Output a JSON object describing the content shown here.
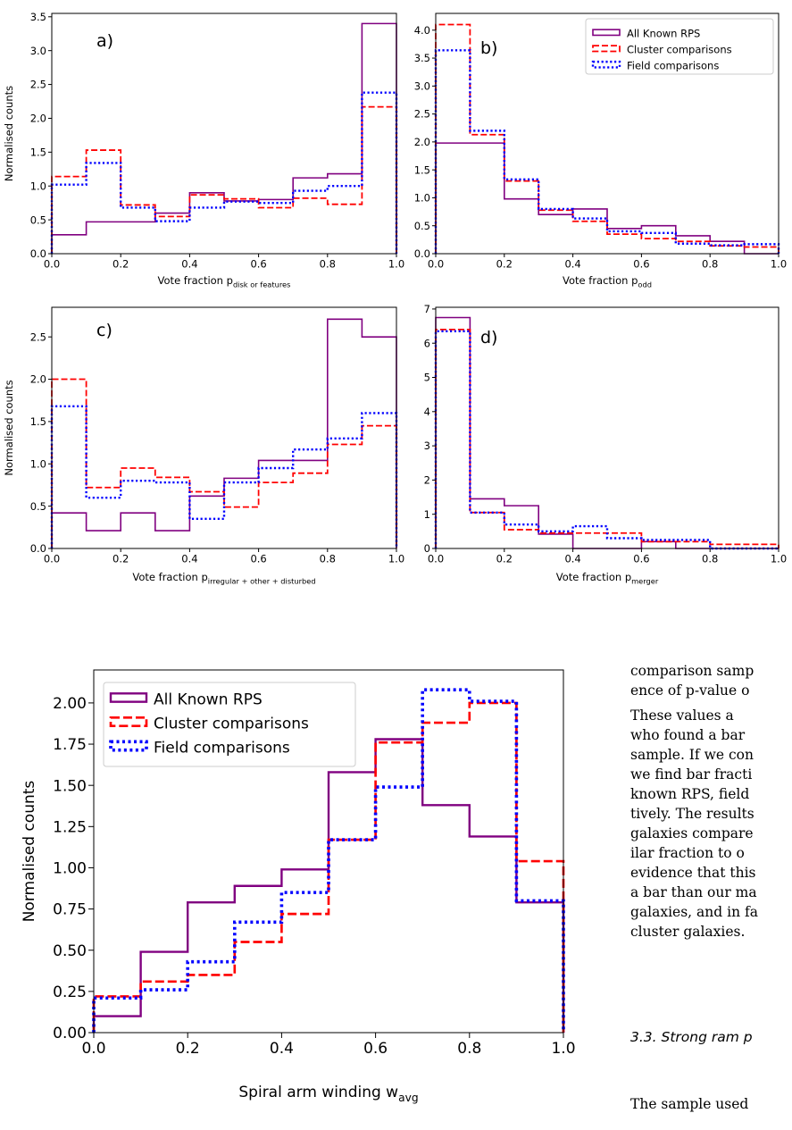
{
  "colors": {
    "rps": "#800080",
    "cluster": "#ff0000",
    "field": "#0000ff",
    "axis": "#000000"
  },
  "legend": {
    "rps": "All Known RPS",
    "cluster": "Cluster comparisons",
    "field": "Field comparisons"
  },
  "chart_data": [
    {
      "panel": "a)",
      "type": "histogram",
      "xlabel": "Vote fraction p",
      "xlabel_sub": "disk or features",
      "ylabel": "Normalised counts",
      "bin_edges": [
        0,
        0.1,
        0.2,
        0.3,
        0.4,
        0.5,
        0.6,
        0.7,
        0.8,
        0.9,
        1.0
      ],
      "xlim": [
        0,
        1
      ],
      "ylim": [
        0,
        3.55
      ],
      "xticks": [
        "0.0",
        "0.2",
        "0.4",
        "0.6",
        "0.8",
        "1.0"
      ],
      "yticks": [
        "0.0",
        "0.5",
        "1.0",
        "1.5",
        "2.0",
        "2.5",
        "3.0",
        "3.5"
      ],
      "series": [
        {
          "key": "rps",
          "name": "All Known RPS",
          "values": [
            0.28,
            0.47,
            0.47,
            0.6,
            0.9,
            0.78,
            0.8,
            1.12,
            1.18,
            3.4
          ]
        },
        {
          "key": "cluster",
          "name": "Cluster comparisons",
          "values": [
            1.14,
            1.53,
            0.72,
            0.55,
            0.87,
            0.81,
            0.68,
            0.82,
            0.73,
            2.17
          ]
        },
        {
          "key": "field",
          "name": "Field comparisons",
          "values": [
            1.02,
            1.34,
            0.68,
            0.48,
            0.68,
            0.77,
            0.75,
            0.93,
            1.0,
            2.38
          ]
        }
      ]
    },
    {
      "panel": "b)",
      "type": "histogram",
      "xlabel": "Vote fraction p",
      "xlabel_sub": "odd",
      "ylabel": "",
      "bin_edges": [
        0,
        0.1,
        0.2,
        0.3,
        0.4,
        0.5,
        0.6,
        0.7,
        0.8,
        0.9,
        1.0
      ],
      "xlim": [
        0,
        1
      ],
      "ylim": [
        0,
        4.3
      ],
      "xticks": [
        "0.0",
        "0.2",
        "0.4",
        "0.6",
        "0.8",
        "1.0"
      ],
      "yticks": [
        "0.0",
        "0.5",
        "1.0",
        "1.5",
        "2.0",
        "2.5",
        "3.0",
        "3.5",
        "4.0"
      ],
      "legend": true,
      "series": [
        {
          "key": "rps",
          "name": "All Known RPS",
          "values": [
            1.98,
            1.98,
            0.98,
            0.7,
            0.8,
            0.45,
            0.5,
            0.32,
            0.22,
            0.0
          ]
        },
        {
          "key": "cluster",
          "name": "Cluster comparisons",
          "values": [
            4.1,
            2.13,
            1.3,
            0.78,
            0.58,
            0.35,
            0.27,
            0.22,
            0.14,
            0.12
          ]
        },
        {
          "key": "field",
          "name": "Field comparisons",
          "values": [
            3.64,
            2.2,
            1.33,
            0.8,
            0.63,
            0.4,
            0.37,
            0.18,
            0.15,
            0.17
          ]
        }
      ]
    },
    {
      "panel": "c)",
      "type": "histogram",
      "xlabel": "Vote fraction p",
      "xlabel_sub": "irregular + other + disturbed",
      "ylabel": "Normalised counts",
      "bin_edges": [
        0,
        0.1,
        0.2,
        0.3,
        0.4,
        0.5,
        0.6,
        0.7,
        0.8,
        0.9,
        1.0
      ],
      "xlim": [
        0,
        1
      ],
      "ylim": [
        0,
        2.85
      ],
      "xticks": [
        "0.0",
        "0.2",
        "0.4",
        "0.6",
        "0.8",
        "1.0"
      ],
      "yticks": [
        "0.0",
        "0.5",
        "1.0",
        "1.5",
        "2.0",
        "2.5"
      ],
      "series": [
        {
          "key": "rps",
          "name": "All Known RPS",
          "values": [
            0.42,
            0.21,
            0.42,
            0.21,
            0.62,
            0.83,
            1.04,
            1.04,
            2.71,
            2.5
          ]
        },
        {
          "key": "cluster",
          "name": "Cluster comparisons",
          "values": [
            2.0,
            0.72,
            0.95,
            0.84,
            0.67,
            0.49,
            0.78,
            0.89,
            1.23,
            1.45
          ]
        },
        {
          "key": "field",
          "name": "Field comparisons",
          "values": [
            1.68,
            0.6,
            0.8,
            0.78,
            0.35,
            0.78,
            0.95,
            1.17,
            1.3,
            1.6
          ]
        }
      ]
    },
    {
      "panel": "d)",
      "type": "histogram",
      "xlabel": "Vote fraction p",
      "xlabel_sub": "merger",
      "ylabel": "",
      "bin_edges": [
        0,
        0.1,
        0.2,
        0.3,
        0.4,
        0.5,
        0.6,
        0.7,
        0.8,
        0.9,
        1.0
      ],
      "xlim": [
        0,
        1
      ],
      "ylim": [
        0,
        7.05
      ],
      "xticks": [
        "0.0",
        "0.2",
        "0.4",
        "0.6",
        "0.8",
        "1.0"
      ],
      "yticks": [
        "0",
        "1",
        "2",
        "3",
        "4",
        "5",
        "6",
        "7"
      ],
      "series": [
        {
          "key": "rps",
          "name": "All Known RPS",
          "values": [
            6.75,
            1.45,
            1.25,
            0.42,
            0.0,
            0.0,
            0.2,
            0.0,
            0.0,
            0.0
          ]
        },
        {
          "key": "cluster",
          "name": "Cluster comparisons",
          "values": [
            6.4,
            1.05,
            0.55,
            0.45,
            0.45,
            0.45,
            0.2,
            0.2,
            0.12,
            0.12
          ]
        },
        {
          "key": "field",
          "name": "Field comparisons",
          "values": [
            6.35,
            1.05,
            0.7,
            0.5,
            0.65,
            0.3,
            0.25,
            0.25,
            0.0,
            0.0
          ]
        }
      ]
    },
    {
      "panel": "",
      "type": "histogram",
      "xlabel": "Spiral arm winding w",
      "xlabel_sub": "avg",
      "ylabel": "Normalised counts",
      "bin_edges": [
        0,
        0.1,
        0.2,
        0.3,
        0.4,
        0.5,
        0.6,
        0.7,
        0.8,
        0.9,
        1.0
      ],
      "xlim": [
        0,
        1
      ],
      "ylim": [
        0,
        2.2
      ],
      "xticks": [
        "0.0",
        "0.2",
        "0.4",
        "0.6",
        "0.8",
        "1.0"
      ],
      "yticks": [
        "0.00",
        "0.25",
        "0.50",
        "0.75",
        "1.00",
        "1.25",
        "1.50",
        "1.75",
        "2.00"
      ],
      "legend": true,
      "series": [
        {
          "key": "rps",
          "name": "All Known RPS",
          "values": [
            0.1,
            0.49,
            0.79,
            0.89,
            0.99,
            1.58,
            1.78,
            1.38,
            1.19,
            0.79
          ]
        },
        {
          "key": "cluster",
          "name": "Cluster comparisons",
          "values": [
            0.22,
            0.31,
            0.35,
            0.55,
            0.72,
            1.17,
            1.76,
            1.88,
            2.0,
            1.04
          ]
        },
        {
          "key": "field",
          "name": "Field comparisons",
          "values": [
            0.21,
            0.26,
            0.43,
            0.67,
            0.85,
            1.17,
            1.49,
            2.08,
            2.01,
            0.8
          ]
        }
      ]
    }
  ],
  "side_text": {
    "lines": [
      "comparison samp",
      "ence of p-value o",
      "    These values a",
      "who found a bar",
      "sample. If we con",
      "we find bar fracti",
      "known RPS, field",
      "tively. The results",
      "galaxies compare",
      "ilar fraction to o",
      "evidence that this",
      "a bar than our ma",
      "galaxies, and in fa",
      "cluster galaxies."
    ],
    "section_heading": "3.3. Strong ram p",
    "last_line": "The sample used"
  }
}
